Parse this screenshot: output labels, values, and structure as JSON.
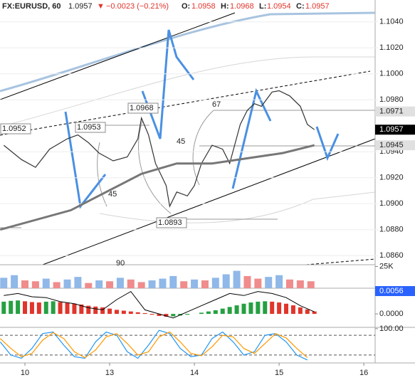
{
  "header": {
    "symbol": "FX:EURUSD, 60",
    "last": "1.0957",
    "arrow": "▼",
    "change": "−0.0023 (−0.21%)",
    "open_label": "O:",
    "open": "1.0958",
    "high_label": "H:",
    "high": "1.0968",
    "low_label": "L:",
    "low": "1.0954",
    "close_label": "C:",
    "close": "1.0957"
  },
  "chart_data": [
    {
      "type": "line",
      "xlim": [
        -7.06,
        99.2
      ],
      "xticks": [
        {
          "value": 0,
          "label": "10"
        },
        {
          "value": 24,
          "label": "13"
        },
        {
          "value": 48,
          "label": "14"
        },
        {
          "value": 72,
          "label": "15"
        },
        {
          "value": 96,
          "label": "16"
        }
      ],
      "ylim": [
        1.0853,
        1.1047
      ],
      "yticks": [
        {
          "value": 1.104,
          "label": "1.1040"
        },
        {
          "value": 1.102,
          "label": "1.1020"
        },
        {
          "value": 1.1,
          "label": "1.1000"
        },
        {
          "value": 1.098,
          "label": "1.0980"
        },
        {
          "value": 1.094,
          "label": "1.0940"
        },
        {
          "value": 1.092,
          "label": "1.0920"
        },
        {
          "value": 1.09,
          "label": "1.0900"
        },
        {
          "value": 1.088,
          "label": "1.0880"
        },
        {
          "value": 1.086,
          "label": "1.0860"
        }
      ],
      "series": [
        {
          "color": "#333333",
          "x": [
            -6,
            -1,
            3,
            7,
            12,
            15,
            18,
            21,
            25,
            29,
            32,
            33,
            35,
            37,
            40,
            41,
            43,
            46,
            48,
            50,
            53,
            56,
            58,
            61,
            63,
            65,
            67,
            70,
            72,
            75,
            78,
            80,
            82
          ],
          "values": [
            1.0945,
            1.0934,
            1.0928,
            1.0942,
            1.095,
            1.0953,
            1.0947,
            1.0939,
            1.0933,
            1.0936,
            1.095,
            1.0966,
            1.0953,
            1.0931,
            1.0914,
            1.0898,
            1.0909,
            1.0906,
            1.0914,
            1.0931,
            1.0945,
            1.0942,
            1.0931,
            1.0961,
            1.0972,
            1.0977,
            1.0975,
            1.0986,
            1.0987,
            1.0983,
            1.0975,
            1.0961,
            1.0957
          ]
        },
        {
          "color": "#777777",
          "x": [
            -7,
            13,
            33,
            43,
            53,
            73,
            82
          ],
          "values": [
            1.088,
            1.0895,
            1.0923,
            1.0931,
            1.0931,
            1.0939,
            1.0945
          ]
        }
      ],
      "price_tags": [
        {
          "value": 1.0971,
          "label": "1.0971",
          "color": "#e0e0e0"
        },
        {
          "value": 1.0957,
          "label": "1.0957",
          "color": "#000000"
        },
        {
          "value": 1.0945,
          "label": "1.0945",
          "color": "#e0e0e0"
        }
      ],
      "annotations": [
        "1.0968",
        "1.0953",
        "1.0893",
        "1.0952",
        "67",
        "45",
        "45",
        "90"
      ]
    },
    {
      "type": "bar",
      "ylim": [
        0,
        27000
      ],
      "yticks": [
        {
          "value": 25000,
          "label": "25K"
        }
      ],
      "up_color": "#90b8e8",
      "down_color": "#f08c8c",
      "x": [
        -6,
        -3,
        0,
        3,
        6,
        9,
        12,
        15,
        18,
        21,
        24,
        27,
        30,
        33,
        36,
        39,
        42,
        45,
        48,
        51,
        54,
        57,
        60,
        63,
        66,
        69,
        72,
        75,
        78,
        81
      ],
      "values": [
        12000,
        15000,
        9000,
        8000,
        11000,
        7000,
        10000,
        13000,
        6000,
        9000,
        8000,
        12000,
        10000,
        7000,
        9000,
        11000,
        14000,
        8000,
        10000,
        9000,
        12000,
        16000,
        20000,
        14000,
        11000,
        13000,
        15000,
        10000,
        9000,
        8000
      ]
    },
    {
      "type": "macd",
      "ylim": [
        -0.0033,
        0.0063
      ],
      "yticks": [
        {
          "value": 0,
          "label": "0.0000"
        }
      ],
      "up_color": "#26a041",
      "down_color": "#e0352b",
      "last_tag": {
        "value": 0.0056,
        "label": "0.0056",
        "color": "#2962ff"
      },
      "x": [
        -6,
        -4,
        -2,
        0,
        2,
        4,
        6,
        8,
        10,
        12,
        14,
        16,
        18,
        20,
        22,
        24,
        26,
        28,
        30,
        32,
        34,
        36,
        38,
        40,
        42,
        44,
        46,
        48,
        50,
        52,
        54,
        56,
        58,
        60,
        62,
        64,
        66,
        68,
        70,
        72,
        74,
        76,
        78,
        80,
        82
      ],
      "values": [
        0.003,
        0.0032,
        0.0033,
        0.0031,
        0.0029,
        0.0028,
        0.003,
        0.0031,
        0.0029,
        0.0027,
        0.0025,
        0.0023,
        0.002,
        0.0018,
        0.0016,
        0.0013,
        0.001,
        0.0008,
        0.0006,
        0.0004,
        0.0002,
        -0.0002,
        -0.0005,
        -0.0007,
        -0.0006,
        -0.0004,
        -0.0002,
        0,
        0.0003,
        0.0006,
        0.0009,
        0.0013,
        0.0017,
        0.0021,
        0.0025,
        0.0028,
        0.003,
        0.0031,
        0.003,
        0.0028,
        0.0025,
        0.0021,
        0.0016,
        0.0011,
        0.0006
      ],
      "line": {
        "color": "#000000",
        "x": [
          -6,
          -2,
          2,
          6,
          10,
          14,
          18,
          22,
          26,
          30,
          34,
          38,
          42,
          46,
          50,
          54,
          58,
          62,
          66,
          70,
          74,
          78,
          82
        ],
        "values": [
          0.0045,
          0.005,
          0.0042,
          0.004,
          0.003,
          0.0025,
          0.0015,
          0.001,
          0.0035,
          0.0055,
          0.001,
          0,
          -0.001,
          0.0005,
          0.002,
          0.0035,
          0.005,
          0.0045,
          0.0055,
          0.005,
          0.004,
          0.002,
          0.0005
        ]
      }
    },
    {
      "type": "stoch",
      "ylim": [
        -4,
        104
      ],
      "yticks": [
        {
          "value": 100,
          "label": "100.00"
        }
      ],
      "levels": [
        80,
        20
      ],
      "x": [
        -7,
        -4,
        -1,
        2,
        5,
        8,
        11,
        14,
        17,
        20,
        23,
        26,
        29,
        32,
        35,
        38,
        41,
        44,
        47,
        50,
        53,
        56,
        59,
        62,
        65,
        68,
        71,
        74,
        77,
        80
      ],
      "series": [
        {
          "color": "#2196f3",
          "values": [
            60,
            20,
            10,
            40,
            85,
            90,
            50,
            15,
            10,
            60,
            90,
            80,
            30,
            10,
            50,
            95,
            85,
            40,
            15,
            20,
            70,
            90,
            60,
            20,
            30,
            80,
            85,
            60,
            20,
            5
          ]
        },
        {
          "color": "#ff9800",
          "values": [
            70,
            40,
            15,
            25,
            65,
            88,
            70,
            30,
            12,
            35,
            75,
            85,
            55,
            20,
            30,
            75,
            90,
            60,
            25,
            18,
            45,
            80,
            75,
            40,
            25,
            55,
            85,
            72,
            40,
            12
          ]
        }
      ]
    }
  ]
}
